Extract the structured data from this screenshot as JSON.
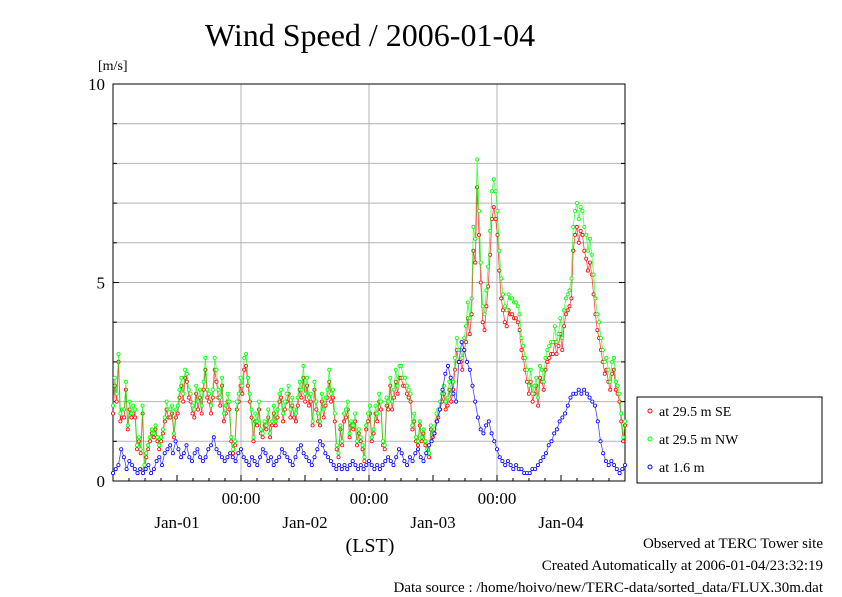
{
  "chart_data": {
    "type": "line",
    "title": "Wind Speed / 2006-01-04",
    "ylabel": "[m/s]",
    "xlabel": "(LST)",
    "ylim": [
      0,
      10
    ],
    "y_ticks": [
      "0",
      "5",
      "10"
    ],
    "x_ticks": [
      "00:00",
      "00:00",
      "00:00"
    ],
    "x_date_labels": [
      "Jan-01",
      "Jan-02",
      "Jan-03",
      "Jan-04"
    ],
    "x_unit": "hours since 2005-12-31 12:00 LST",
    "xlim": [
      0,
      96
    ],
    "grid": true,
    "legend_position": "right",
    "series": [
      {
        "name": "at 29.5 m SE",
        "color": "#ff0000",
        "values": [
          1.7,
          2.4,
          2.0,
          3.0,
          1.5,
          1.6,
          1.6,
          2.3,
          1.3,
          1.8,
          1.6,
          1.7,
          1.6,
          0.8,
          1.0,
          0.7,
          1.7,
          0.3,
          0.6,
          0.8,
          1.0,
          1.2,
          1.1,
          1.3,
          1.0,
          0.8,
          1.0,
          1.2,
          1.5,
          1.8,
          1.6,
          1.6,
          1.7,
          1.1,
          1.6,
          1.7,
          2.1,
          2.4,
          2.0,
          2.6,
          2.5,
          2.1,
          2.0,
          1.7,
          1.6,
          2.2,
          1.8,
          2.1,
          1.7,
          2.3,
          2.8,
          2.1,
          2.0,
          1.7,
          2.1,
          2.8,
          2.5,
          2.1,
          1.9,
          2.4,
          1.5,
          1.7,
          2.0,
          1.8,
          1.0,
          0.7,
          0.9,
          1.8,
          2.0,
          2.4,
          2.2,
          2.8,
          2.9,
          2.4,
          2.0,
          1.6,
          1.0,
          1.5,
          1.4,
          1.8,
          1.2,
          1.1,
          1.4,
          1.3,
          1.6,
          1.1,
          1.4,
          1.7,
          1.4,
          1.6,
          2.0,
          2.1,
          1.5,
          1.8,
          2.0,
          2.2,
          1.6,
          1.9,
          1.6,
          1.5,
          1.9,
          2.3,
          2.1,
          2.6,
          2.0,
          2.4,
          1.9,
          2.0,
          1.4,
          2.3,
          1.8,
          1.5,
          1.4,
          2.0,
          1.6,
          1.9,
          2.1,
          2.5,
          2.0,
          2.1,
          1.5,
          0.8,
          0.6,
          1.3,
          0.9,
          1.5,
          1.6,
          1.8,
          1.1,
          1.4,
          1.3,
          1.5,
          0.9,
          1.2,
          1.0,
          0.8,
          0.5,
          1.3,
          1.5,
          1.7,
          1.0,
          1.2,
          1.7,
          1.5,
          2.0,
          1.8,
          0.9,
          0.8,
          1.9,
          1.8,
          2.4,
          1.8,
          2.1,
          2.5,
          2.2,
          2.6,
          2.6,
          2.4,
          2.4,
          2.2,
          2.1,
          2.0,
          1.3,
          1.5,
          1.0,
          0.9,
          1.4,
          1.0,
          1.2,
          0.9,
          0.7,
          0.6,
          1.3,
          1.1,
          1.2,
          1.5,
          1.6,
          1.8,
          2.0,
          2.2,
          1.8,
          1.9,
          2.3,
          2.0,
          2.3,
          2.8,
          3.3,
          3.0,
          3.0,
          2.8,
          3.3,
          3.5,
          4.1,
          3.7,
          4.2,
          5.8,
          5.5,
          7.4,
          6.2,
          5.0,
          4.0,
          3.8,
          4.4,
          4.9,
          5.7,
          6.6,
          6.9,
          6.6,
          6.2,
          5.3,
          4.6,
          4.3,
          4.0,
          3.9,
          4.3,
          4.2,
          4.2,
          4.1,
          4.1,
          4.0,
          3.8,
          3.3,
          3.1,
          2.8,
          2.5,
          2.2,
          2.5,
          2.0,
          2.2,
          2.4,
          1.9,
          2.6,
          2.5,
          2.3,
          2.8,
          3.0,
          3.1,
          3.2,
          3.2,
          3.5,
          3.2,
          3.4,
          3.7,
          3.3,
          3.9,
          4.2,
          4.3,
          4.4,
          4.6,
          5.8,
          6.2,
          6.4,
          6.0,
          6.3,
          6.2,
          5.8,
          5.6,
          5.3,
          5.5,
          5.2,
          4.7,
          4.2,
          3.8,
          3.6,
          3.3,
          3.0,
          2.7,
          2.8,
          2.5,
          2.3,
          2.7,
          2.8,
          2.3,
          2.2,
          2.0,
          1.5,
          1.0,
          1.4
        ]
      },
      {
        "name": "at 29.5 m NW",
        "color": "#00ff00",
        "values": [
          1.9,
          2.6,
          2.2,
          3.2,
          1.7,
          1.8,
          1.8,
          2.5,
          1.4,
          2.0,
          1.7,
          1.9,
          1.8,
          0.9,
          1.1,
          0.8,
          1.9,
          0.4,
          0.7,
          0.9,
          1.1,
          1.3,
          1.2,
          1.4,
          1.1,
          0.9,
          1.1,
          1.3,
          1.6,
          2.0,
          1.8,
          1.8,
          1.9,
          1.2,
          1.8,
          1.9,
          2.3,
          2.6,
          2.2,
          2.8,
          2.7,
          2.3,
          2.2,
          1.9,
          1.8,
          2.4,
          2.0,
          2.3,
          1.9,
          2.5,
          3.1,
          2.3,
          2.2,
          1.9,
          2.3,
          3.1,
          2.8,
          2.3,
          2.1,
          2.6,
          1.7,
          1.9,
          2.2,
          2.0,
          1.1,
          0.8,
          1.0,
          2.0,
          2.2,
          2.6,
          2.4,
          3.1,
          3.2,
          2.6,
          2.2,
          1.8,
          1.1,
          1.7,
          1.5,
          2.0,
          1.3,
          1.2,
          1.5,
          1.4,
          1.8,
          1.2,
          1.5,
          1.9,
          1.5,
          1.8,
          2.2,
          2.3,
          1.7,
          2.0,
          2.2,
          2.4,
          1.8,
          2.1,
          1.8,
          1.7,
          2.1,
          2.5,
          2.3,
          2.9,
          2.2,
          2.6,
          2.1,
          2.2,
          1.5,
          2.5,
          2.0,
          1.7,
          1.5,
          2.2,
          1.8,
          2.1,
          2.3,
          2.8,
          2.2,
          2.3,
          1.7,
          0.9,
          0.7,
          1.4,
          1.0,
          1.7,
          1.8,
          2.0,
          1.2,
          1.5,
          1.4,
          1.7,
          1.0,
          1.3,
          1.1,
          0.9,
          0.6,
          1.4,
          1.7,
          1.9,
          1.1,
          1.3,
          1.9,
          1.7,
          2.2,
          2.0,
          1.0,
          0.9,
          2.1,
          2.0,
          2.6,
          2.0,
          2.3,
          2.8,
          2.4,
          2.9,
          2.9,
          2.6,
          2.6,
          2.4,
          2.3,
          2.2,
          1.4,
          1.7,
          1.1,
          1.0,
          1.5,
          1.1,
          1.3,
          1.0,
          0.8,
          0.7,
          1.4,
          1.2,
          1.3,
          1.7,
          1.8,
          2.0,
          2.2,
          2.4,
          2.0,
          2.1,
          2.5,
          2.2,
          2.5,
          3.1,
          3.6,
          3.3,
          3.3,
          3.1,
          3.6,
          3.9,
          4.5,
          4.1,
          4.6,
          6.4,
          6.1,
          8.1,
          6.8,
          5.5,
          4.4,
          4.2,
          4.8,
          5.4,
          6.3,
          7.3,
          7.6,
          7.3,
          6.8,
          5.8,
          5.1,
          4.7,
          4.4,
          4.3,
          4.7,
          4.6,
          4.6,
          4.5,
          4.5,
          4.4,
          4.2,
          3.6,
          3.4,
          3.1,
          2.8,
          2.4,
          2.8,
          2.2,
          2.4,
          2.6,
          2.1,
          2.9,
          2.8,
          2.5,
          3.1,
          3.3,
          3.4,
          3.5,
          3.5,
          3.9,
          3.5,
          3.7,
          4.1,
          3.6,
          4.3,
          4.6,
          4.7,
          4.8,
          5.1,
          6.4,
          6.8,
          7.0,
          6.6,
          6.9,
          6.8,
          6.4,
          6.2,
          5.8,
          6.1,
          5.7,
          5.2,
          4.6,
          4.2,
          4.0,
          3.6,
          3.3,
          3.0,
          3.1,
          2.8,
          2.5,
          3.0,
          3.1,
          2.5,
          2.4,
          2.2,
          1.7,
          1.1,
          1.5
        ]
      },
      {
        "name": "at 1.6 m",
        "color": "#0000ff",
        "values": [
          0.2,
          0.3,
          0.4,
          0.8,
          0.6,
          0.3,
          0.5,
          0.4,
          0.3,
          0.2,
          0.3,
          0.2,
          0.3,
          0.4,
          0.2,
          0.3,
          0.5,
          0.6,
          0.4,
          0.7,
          0.8,
          0.9,
          0.7,
          1.0,
          0.8,
          0.6,
          0.7,
          0.9,
          0.6,
          0.5,
          0.7,
          0.8,
          0.6,
          0.5,
          0.6,
          0.8,
          0.9,
          1.1,
          0.8,
          0.7,
          0.6,
          0.5,
          0.6,
          0.7,
          0.6,
          0.5,
          0.7,
          0.8,
          0.6,
          0.5,
          0.4,
          0.6,
          0.5,
          0.4,
          0.6,
          0.8,
          0.7,
          0.5,
          0.6,
          0.4,
          0.5,
          0.6,
          0.8,
          0.7,
          0.6,
          0.5,
          0.4,
          0.6,
          0.8,
          0.9,
          0.7,
          0.6,
          0.5,
          0.4,
          0.6,
          0.8,
          1.0,
          0.9,
          0.7,
          0.6,
          0.5,
          0.4,
          0.3,
          0.4,
          0.3,
          0.4,
          0.3,
          0.4,
          0.5,
          0.4,
          0.3,
          0.4,
          0.3,
          0.4,
          0.5,
          0.4,
          0.3,
          0.4,
          0.3,
          0.4,
          0.5,
          0.6,
          0.5,
          0.4,
          0.6,
          0.8,
          0.7,
          0.5,
          0.4,
          0.6,
          0.5,
          0.7,
          0.8,
          0.6,
          0.5,
          0.7,
          0.9,
          1.0,
          1.2,
          1.5,
          1.8,
          2.3,
          2.7,
          2.9,
          2.6,
          2.2,
          2.0,
          3.0,
          3.5,
          3.3,
          3.0,
          2.8,
          2.4,
          2.0,
          1.6,
          1.3,
          1.2,
          1.4,
          1.5,
          1.2,
          1.0,
          0.8,
          0.6,
          0.5,
          0.4,
          0.5,
          0.4,
          0.3,
          0.4,
          0.3,
          0.3,
          0.2,
          0.2,
          0.2,
          0.3,
          0.3,
          0.4,
          0.5,
          0.6,
          0.7,
          0.9,
          1.0,
          1.2,
          1.3,
          1.5,
          1.6,
          1.7,
          1.9,
          2.1,
          2.2,
          2.2,
          2.3,
          2.2,
          2.3,
          2.2,
          2.1,
          2.0,
          1.9,
          1.5,
          1.0,
          0.7,
          0.5,
          0.4,
          0.5,
          0.4,
          0.3,
          0.2,
          0.3,
          0.4
        ]
      }
    ]
  },
  "footer": {
    "line1": "Observed at TERC Tower site",
    "line2": "Created Automatically at 2006-01-04/23:32:19",
    "line3": "Data source : /home/hoivo/new/TERC-data/sorted_data/FLUX.30m.dat"
  }
}
